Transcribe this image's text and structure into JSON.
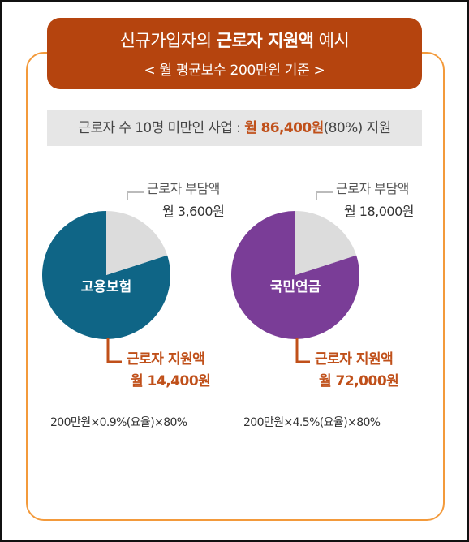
{
  "banner": {
    "title_prefix": "신규가입자의 ",
    "title_bold": "근로자 지원액",
    "title_suffix": " 예시",
    "subtitle": "< 월 평균보수 200만원 기준 >"
  },
  "summary": {
    "prefix": "근로자 수 10명 미만인 사업 : ",
    "highlight": "월 86,400원",
    "suffix": "(80%) 지원"
  },
  "colors": {
    "employment_insurance": "#0f6586",
    "national_pension": "#7a3d97",
    "burden_slice": "#dcdcdc",
    "accent": "#c0501a",
    "frame": "#f39a3b"
  },
  "chart_data": [
    {
      "type": "pie",
      "title": "고용보험",
      "slices": [
        {
          "name": "근로자 부담액",
          "label": "월 3,600원",
          "value": 3600
        },
        {
          "name": "근로자 지원액",
          "label": "월 14,400원",
          "value": 14400
        }
      ],
      "formula": "200만원×0.9%(요율)×80%"
    },
    {
      "type": "pie",
      "title": "국민연금",
      "slices": [
        {
          "name": "근로자 부담액",
          "label": "월 18,000원",
          "value": 18000
        },
        {
          "name": "근로자 지원액",
          "label": "월 72,000원",
          "value": 72000
        }
      ],
      "formula": "200만원×4.5%(요율)×80%"
    }
  ]
}
